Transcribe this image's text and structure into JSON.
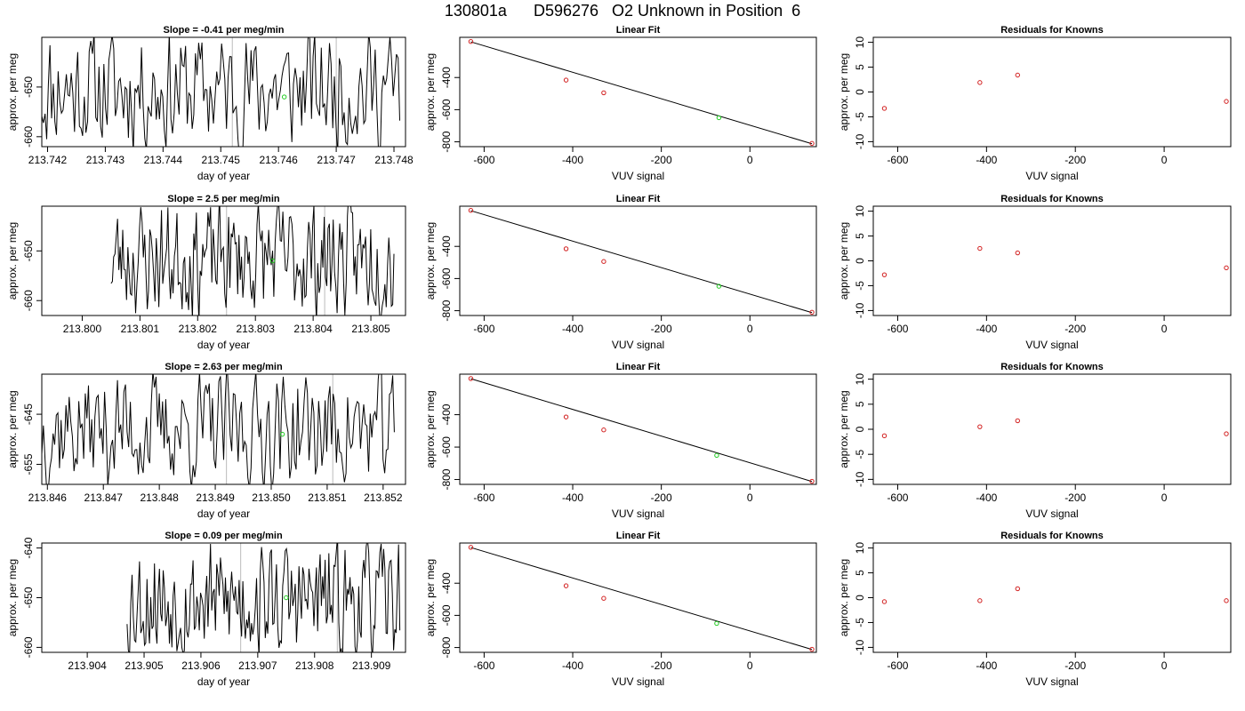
{
  "title": "130801a      D596276   O2 Unknown in Position  6",
  "colors": {
    "trace": "#000000",
    "known_point": "#d22020",
    "unknown_point": "#22cc22",
    "marker_line": "#bbbbbb",
    "axis": "#000000"
  },
  "chart_data": [
    {
      "type": "line",
      "title": "Slope =  -0.41  per meg/min",
      "xlabel": "day of year",
      "ylabel": "approx. per meg",
      "xlim": [
        213.7419,
        213.7482
      ],
      "ylim": [
        -662,
        -640
      ],
      "xticks": [
        213.742,
        213.743,
        213.744,
        213.745,
        213.746,
        213.747,
        213.748
      ],
      "xtick_labels": [
        "213.742",
        "213.743",
        "213.744",
        "213.745",
        "213.746",
        "213.747",
        "213.748"
      ],
      "yticks": [
        -660,
        -650
      ],
      "ytick_labels": [
        "-660",
        "-650"
      ],
      "vlines": [
        213.7452,
        213.747
      ],
      "unknown_point": {
        "x": 213.7461,
        "y": -652
      },
      "trace": {
        "x_start": 213.7419,
        "x_end": 213.7481,
        "mean": -650.5,
        "amplitude": 11.5,
        "seed": 11
      }
    },
    {
      "type": "scatter",
      "title": "Linear Fit",
      "xlabel": "VUV signal",
      "ylabel": "approx. per meg",
      "xlim": [
        -655,
        150
      ],
      "ylim": [
        -830,
        -150
      ],
      "xticks": [
        -600,
        -400,
        -200,
        0
      ],
      "xtick_labels": [
        "-600",
        "-400",
        "-200",
        "0"
      ],
      "yticks": [
        -800,
        -600,
        -400
      ],
      "ytick_labels": [
        "-800",
        "-600",
        "-400"
      ],
      "fit_line": {
        "x": [
          -630,
          140
        ],
        "y": [
          -178,
          -812
        ]
      },
      "knowns": {
        "x": [
          -630,
          -415,
          -330,
          140
        ],
        "y": [
          -176,
          -416,
          -495,
          -810
        ]
      },
      "unknowns": {
        "x": [
          -70
        ],
        "y": [
          -650
        ]
      }
    },
    {
      "type": "scatter",
      "title": "Residuals for Knowns",
      "xlabel": "VUV signal",
      "ylabel": "approx. per meg",
      "xlim": [
        -655,
        150
      ],
      "ylim": [
        -11,
        11
      ],
      "xticks": [
        -600,
        -400,
        -200,
        0
      ],
      "xtick_labels": [
        "-600",
        "-400",
        "-200",
        "0"
      ],
      "yticks": [
        -10,
        -5,
        0,
        5,
        10
      ],
      "ytick_labels": [
        "-10",
        "-5",
        "0",
        "5",
        "10"
      ],
      "points": {
        "x": [
          -630,
          -415,
          -330,
          140
        ],
        "y": [
          -3.3,
          1.9,
          3.4,
          -1.9
        ]
      }
    },
    {
      "type": "line",
      "title": "Slope =  2.5  per meg/min",
      "xlabel": "day of year",
      "ylabel": "approx. per meg",
      "xlim": [
        213.7993,
        213.8056
      ],
      "ylim": [
        -663,
        -641
      ],
      "xticks": [
        213.8,
        213.801,
        213.802,
        213.803,
        213.804,
        213.805
      ],
      "xtick_labels": [
        "213.800",
        "213.801",
        "213.802",
        "213.803",
        "213.804",
        "213.805"
      ],
      "yticks": [
        -660,
        -650
      ],
      "ytick_labels": [
        "-660",
        "-650"
      ],
      "vlines": [
        213.8025,
        213.8042
      ],
      "unknown_point": {
        "x": 213.8033,
        "y": -652
      },
      "trace": {
        "x_start": 213.8005,
        "x_end": 213.8054,
        "mean": -651.5,
        "amplitude": 11,
        "seed": 23
      }
    },
    {
      "type": "scatter",
      "title": "Linear Fit",
      "xlabel": "VUV signal",
      "ylabel": "approx. per meg",
      "xlim": [
        -655,
        150
      ],
      "ylim": [
        -830,
        -150
      ],
      "xticks": [
        -600,
        -400,
        -200,
        0
      ],
      "xtick_labels": [
        "-600",
        "-400",
        "-200",
        "0"
      ],
      "yticks": [
        -800,
        -600,
        -400
      ],
      "ytick_labels": [
        "-800",
        "-600",
        "-400"
      ],
      "fit_line": {
        "x": [
          -630,
          140
        ],
        "y": [
          -178,
          -812
        ]
      },
      "knowns": {
        "x": [
          -630,
          -415,
          -330,
          140
        ],
        "y": [
          -176,
          -415,
          -494,
          -810
        ]
      },
      "unknowns": {
        "x": [
          -70
        ],
        "y": [
          -648
        ]
      }
    },
    {
      "type": "scatter",
      "title": "Residuals for Knowns",
      "xlabel": "VUV signal",
      "ylabel": "approx. per meg",
      "xlim": [
        -655,
        150
      ],
      "ylim": [
        -11,
        11
      ],
      "xticks": [
        -600,
        -400,
        -200,
        0
      ],
      "xtick_labels": [
        "-600",
        "-400",
        "-200",
        "0"
      ],
      "yticks": [
        -10,
        -5,
        0,
        5,
        10
      ],
      "ytick_labels": [
        "-10",
        "-5",
        "0",
        "5",
        "10"
      ],
      "points": {
        "x": [
          -630,
          -415,
          -330,
          140
        ],
        "y": [
          -2.8,
          2.5,
          1.6,
          -1.4
        ]
      }
    },
    {
      "type": "line",
      "title": "Slope =  2.63  per meg/min",
      "xlabel": "day of year",
      "ylabel": "approx. per meg",
      "xlim": [
        213.8459,
        213.8524
      ],
      "ylim": [
        -659,
        -637
      ],
      "xticks": [
        213.846,
        213.847,
        213.848,
        213.849,
        213.85,
        213.851,
        213.852
      ],
      "xtick_labels": [
        "213.846",
        "213.847",
        "213.848",
        "213.849",
        "213.850",
        "213.851",
        "213.852"
      ],
      "yticks": [
        -655,
        -645
      ],
      "ytick_labels": [
        "-655",
        "-645"
      ],
      "vlines": [
        213.8492,
        213.8511
      ],
      "unknown_point": {
        "x": 213.8502,
        "y": -649
      },
      "trace": {
        "x_start": 213.8459,
        "x_end": 213.8522,
        "mean": -648,
        "amplitude": 11,
        "seed": 37
      }
    },
    {
      "type": "scatter",
      "title": "Linear Fit",
      "xlabel": "VUV signal",
      "ylabel": "approx. per meg",
      "xlim": [
        -655,
        150
      ],
      "ylim": [
        -830,
        -150
      ],
      "xticks": [
        -600,
        -400,
        -200,
        0
      ],
      "xtick_labels": [
        "-600",
        "-400",
        "-200",
        "0"
      ],
      "yticks": [
        -800,
        -600,
        -400
      ],
      "ytick_labels": [
        "-800",
        "-600",
        "-400"
      ],
      "fit_line": {
        "x": [
          -630,
          140
        ],
        "y": [
          -178,
          -812
        ]
      },
      "knowns": {
        "x": [
          -630,
          -415,
          -330,
          140
        ],
        "y": [
          -177,
          -414,
          -494,
          -811
        ]
      },
      "unknowns": {
        "x": [
          -75
        ],
        "y": [
          -651
        ]
      }
    },
    {
      "type": "scatter",
      "title": "Residuals for Knowns",
      "xlabel": "VUV signal",
      "ylabel": "approx. per meg",
      "xlim": [
        -655,
        150
      ],
      "ylim": [
        -11,
        11
      ],
      "xticks": [
        -600,
        -400,
        -200,
        0
      ],
      "xtick_labels": [
        "-600",
        "-400",
        "-200",
        "0"
      ],
      "yticks": [
        -10,
        -5,
        0,
        5,
        10
      ],
      "ytick_labels": [
        "-10",
        "-5",
        "0",
        "5",
        "10"
      ],
      "points": {
        "x": [
          -630,
          -415,
          -330,
          140
        ],
        "y": [
          -1.3,
          0.5,
          1.7,
          -0.9
        ]
      }
    },
    {
      "type": "line",
      "title": "Slope =  0.09  per meg/min",
      "xlabel": "day of year",
      "ylabel": "approx. per meg",
      "xlim": [
        213.9032,
        213.9096
      ],
      "ylim": [
        -661,
        -639
      ],
      "xticks": [
        213.904,
        213.905,
        213.906,
        213.907,
        213.908,
        213.909
      ],
      "xtick_labels": [
        "213.904",
        "213.905",
        "213.906",
        "213.907",
        "213.908",
        "213.909"
      ],
      "yticks": [
        -660,
        -650,
        -640
      ],
      "ytick_labels": [
        "-660",
        "-650",
        "-640"
      ],
      "vlines": [
        213.9067,
        213.9084
      ],
      "unknown_point": {
        "x": 213.9075,
        "y": -650
      },
      "trace": {
        "x_start": 213.9047,
        "x_end": 213.9095,
        "mean": -650.5,
        "amplitude": 11,
        "seed": 53
      }
    },
    {
      "type": "scatter",
      "title": "Linear Fit",
      "xlabel": "VUV signal",
      "ylabel": "approx. per meg",
      "xlim": [
        -655,
        150
      ],
      "ylim": [
        -830,
        -150
      ],
      "xticks": [
        -600,
        -400,
        -200,
        0
      ],
      "xtick_labels": [
        "-600",
        "-400",
        "-200",
        "0"
      ],
      "yticks": [
        -800,
        -600,
        -400
      ],
      "ytick_labels": [
        "-800",
        "-600",
        "-400"
      ],
      "fit_line": {
        "x": [
          -630,
          140
        ],
        "y": [
          -178,
          -812
        ]
      },
      "knowns": {
        "x": [
          -630,
          -415,
          -330,
          140
        ],
        "y": [
          -177,
          -416,
          -494,
          -811
        ]
      },
      "unknowns": {
        "x": [
          -75
        ],
        "y": [
          -650
        ]
      }
    },
    {
      "type": "scatter",
      "title": "Residuals for Knowns",
      "xlabel": "VUV signal",
      "ylabel": "approx. per meg",
      "xlim": [
        -655,
        150
      ],
      "ylim": [
        -11,
        11
      ],
      "xticks": [
        -600,
        -400,
        -200,
        0
      ],
      "xtick_labels": [
        "-600",
        "-400",
        "-200",
        "0"
      ],
      "yticks": [
        -10,
        -5,
        0,
        5,
        10
      ],
      "ytick_labels": [
        "-10",
        "-5",
        "0",
        "5",
        "10"
      ],
      "points": {
        "x": [
          -630,
          -415,
          -330,
          140
        ],
        "y": [
          -0.8,
          -0.6,
          1.8,
          -0.6
        ]
      }
    }
  ]
}
